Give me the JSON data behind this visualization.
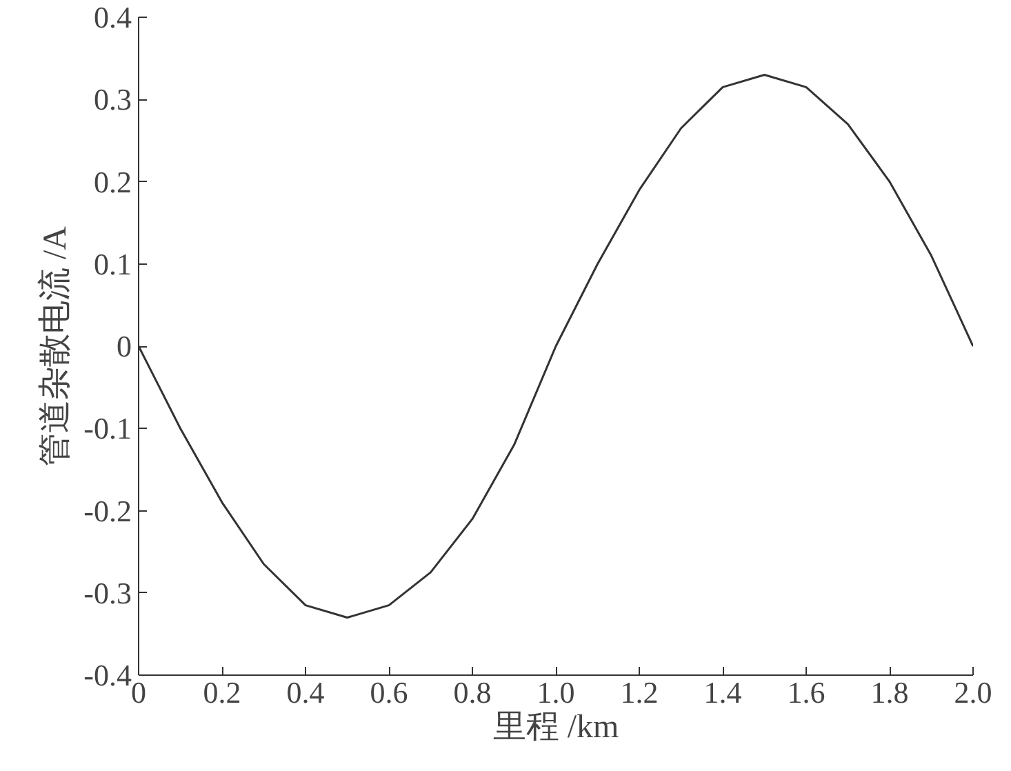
{
  "chart_data": {
    "type": "line",
    "xlabel": "里程 /km",
    "ylabel": "管道杂散电流 /A",
    "x": [
      0,
      0.05,
      0.1,
      0.2,
      0.3,
      0.4,
      0.5,
      0.6,
      0.7,
      0.8,
      0.9,
      1.0,
      1.1,
      1.2,
      1.3,
      1.4,
      1.5,
      1.6,
      1.7,
      1.8,
      1.9,
      1.95,
      2.0
    ],
    "series": [
      {
        "color": "#333333",
        "values": [
          0,
          -0.05,
          -0.1,
          -0.19,
          -0.265,
          -0.315,
          -0.33,
          -0.315,
          -0.275,
          -0.21,
          -0.12,
          0.0,
          0.1,
          0.19,
          0.265,
          0.315,
          0.33,
          0.315,
          0.27,
          0.2,
          0.11,
          0.055,
          0.0
        ]
      }
    ],
    "xlim": [
      0,
      2.0
    ],
    "ylim": [
      -0.4,
      0.4
    ],
    "xticks": [
      0,
      0.2,
      0.4,
      0.6,
      0.8,
      {
        "value": 1.0,
        "label": "1.0"
      },
      1.2,
      1.4,
      1.6,
      1.8,
      {
        "value": 2.0,
        "label": "2.0"
      }
    ],
    "yticks": [
      -0.4,
      -0.3,
      -0.2,
      -0.1,
      0,
      0.1,
      0.2,
      0.3,
      0.4
    ],
    "grid": false,
    "marker": "none",
    "line_style": "solid"
  }
}
